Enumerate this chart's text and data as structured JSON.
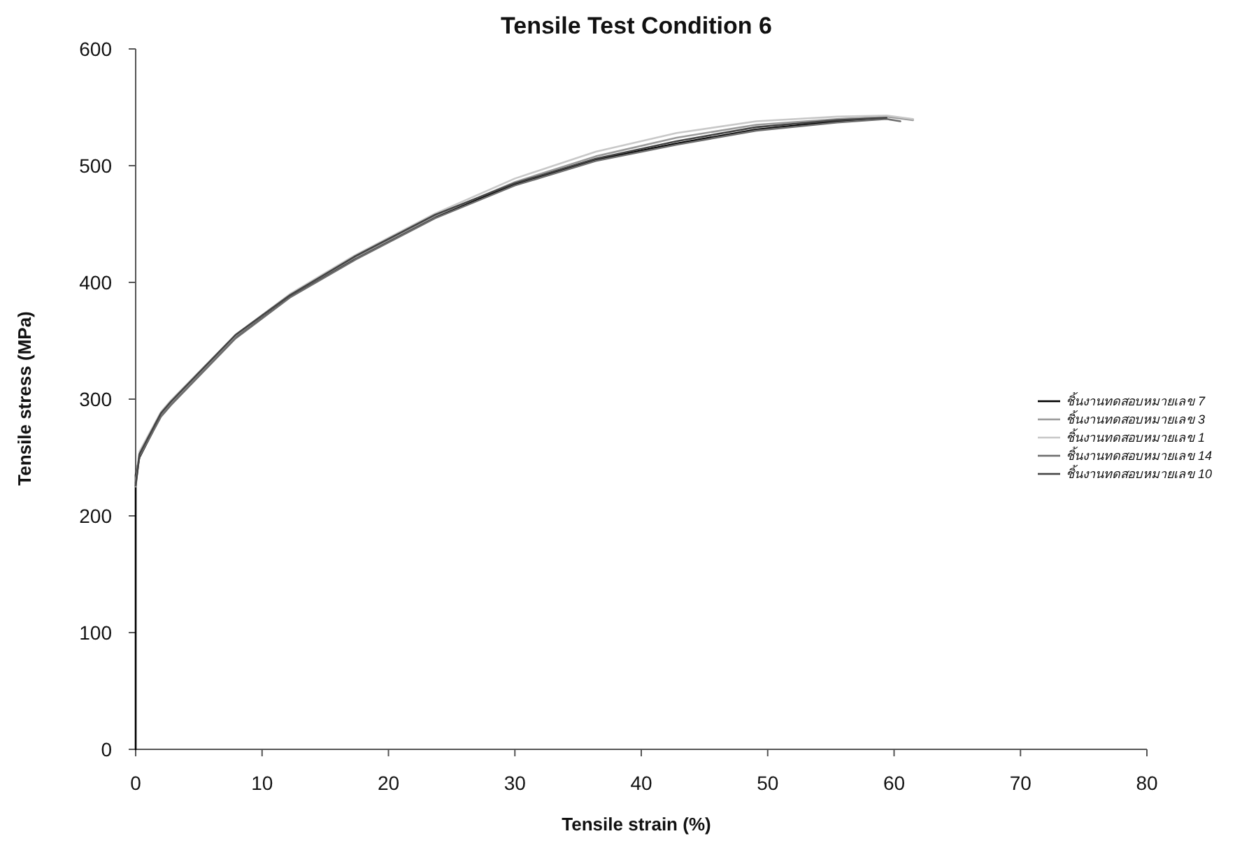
{
  "chart_data": {
    "type": "line",
    "title": "Tensile Test Condition 6",
    "xlabel": "Tensile strain (%)",
    "ylabel": "Tensile stress (MPa)",
    "xlim": [
      0,
      80
    ],
    "ylim": [
      0,
      600
    ],
    "xticks": [
      0,
      10,
      20,
      30,
      40,
      50,
      60,
      70,
      80
    ],
    "yticks": [
      0,
      100,
      200,
      300,
      400,
      500,
      600
    ],
    "legend": "right",
    "series": [
      {
        "name": "ชิ้นงานทดสอบหมายเลข 7",
        "color": "#000000",
        "x": [
          0,
          0,
          0,
          0.3,
          2.0,
          2.8,
          7.9,
          12.2,
          17.3,
          23.7,
          30.0,
          36.4,
          42.8,
          49.1,
          55.5,
          59.4
        ],
        "values": [
          0,
          160,
          235,
          250,
          286,
          296,
          353,
          388,
          420,
          456,
          484,
          505,
          519,
          531,
          538,
          541
        ]
      },
      {
        "name": "ชิ้นงานทดสอบหมายเลข 3",
        "color": "#9a9a9a",
        "x": [
          0,
          0.3,
          2.0,
          2.8,
          7.9,
          12.2,
          17.3,
          23.7,
          30.0,
          36.4,
          42.8,
          49.1,
          55.5,
          59.4,
          61.5
        ],
        "values": [
          225,
          252,
          287,
          297,
          354,
          389,
          421,
          457,
          486,
          508,
          524,
          535,
          540,
          542,
          539
        ]
      },
      {
        "name": "ชิ้นงานทดสอบหมายเลข 1",
        "color": "#c8c8c8",
        "x": [
          0,
          0.3,
          2.0,
          2.8,
          7.9,
          12.2,
          17.3,
          23.7,
          30.0,
          36.4,
          42.8,
          49.1,
          55.5,
          59.4,
          61.5
        ],
        "values": [
          230,
          255,
          289,
          299,
          355,
          390,
          423,
          459,
          489,
          512,
          528,
          538,
          542,
          543,
          540
        ]
      },
      {
        "name": "ชิ้นงานทดสอบหมายเลข 14",
        "color": "#6e6e6e",
        "x": [
          0,
          0.3,
          2.0,
          2.8,
          7.9,
          12.2,
          17.3,
          23.7,
          30.0,
          36.4,
          42.8,
          49.1,
          55.5,
          59.4,
          60.5
        ],
        "values": [
          228,
          251,
          285,
          295,
          352,
          387,
          419,
          455,
          483,
          504,
          518,
          530,
          537,
          540,
          538
        ]
      },
      {
        "name": "ชิ้นงานทดสอบหมายเลข 10",
        "color": "#444444",
        "x": [
          0,
          0.3,
          2.0,
          2.8,
          7.9,
          12.2,
          17.3,
          23.7,
          30.0,
          36.4,
          42.8,
          49.1,
          55.5,
          59.4
        ],
        "values": [
          226,
          253,
          288,
          298,
          355,
          389,
          422,
          458,
          485,
          506,
          521,
          533,
          539,
          541
        ]
      }
    ]
  }
}
